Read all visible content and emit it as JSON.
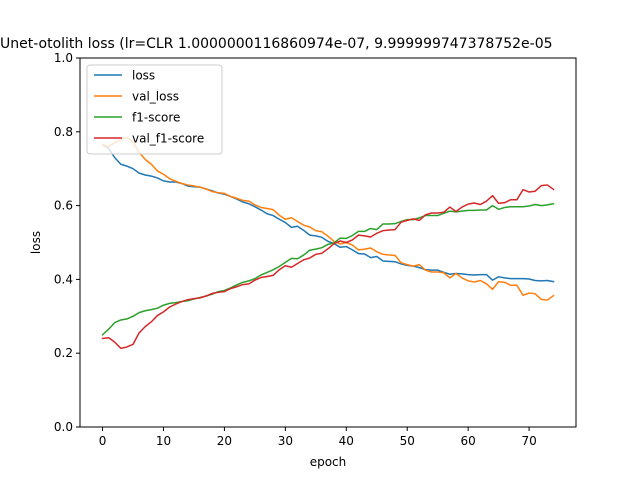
{
  "chart_data": {
    "type": "line",
    "title": "Unet-otolith loss (lr=CLR 1.0000000116860974e-07, 9.999999747378752e-05",
    "xlabel": "epoch",
    "ylabel": "loss",
    "xlim": [
      -3.7,
      77.7
    ],
    "ylim": [
      0.0,
      1.0
    ],
    "xticks": [
      0,
      10,
      20,
      30,
      40,
      50,
      60,
      70
    ],
    "yticks": [
      0.0,
      0.2,
      0.4,
      0.6,
      0.8,
      1.0
    ],
    "xtick_labels": [
      "0",
      "10",
      "20",
      "30",
      "40",
      "50",
      "60",
      "70"
    ],
    "ytick_labels": [
      "0.0",
      "0.2",
      "0.4",
      "0.6",
      "0.8",
      "1.0"
    ],
    "grid": false,
    "legend_position": "top-left",
    "series": [
      {
        "name": "loss",
        "color": "#1f77b4",
        "values": [
          0.765,
          0.755,
          0.73,
          0.712,
          0.707,
          0.7,
          0.688,
          0.683,
          0.68,
          0.675,
          0.667,
          0.664,
          0.664,
          0.66,
          0.653,
          0.651,
          0.65,
          0.645,
          0.64,
          0.634,
          0.631,
          0.625,
          0.618,
          0.61,
          0.605,
          0.597,
          0.588,
          0.578,
          0.573,
          0.563,
          0.554,
          0.541,
          0.544,
          0.533,
          0.52,
          0.518,
          0.514,
          0.503,
          0.497,
          0.487,
          0.489,
          0.48,
          0.47,
          0.469,
          0.459,
          0.462,
          0.45,
          0.449,
          0.448,
          0.442,
          0.438,
          0.436,
          0.432,
          0.426,
          0.425,
          0.425,
          0.419,
          0.414,
          0.416,
          0.415,
          0.413,
          0.412,
          0.413,
          0.413,
          0.398,
          0.407,
          0.404,
          0.402,
          0.402,
          0.402,
          0.401,
          0.397,
          0.396,
          0.397,
          0.394
        ]
      },
      {
        "name": "val_loss",
        "color": "#ff7f0e",
        "values": [
          0.765,
          0.76,
          0.77,
          0.78,
          0.785,
          0.772,
          0.745,
          0.725,
          0.712,
          0.694,
          0.685,
          0.673,
          0.666,
          0.66,
          0.656,
          0.653,
          0.65,
          0.645,
          0.638,
          0.635,
          0.633,
          0.625,
          0.62,
          0.614,
          0.612,
          0.602,
          0.595,
          0.592,
          0.589,
          0.574,
          0.563,
          0.567,
          0.557,
          0.547,
          0.542,
          0.532,
          0.529,
          0.517,
          0.503,
          0.496,
          0.5,
          0.493,
          0.48,
          0.482,
          0.485,
          0.475,
          0.468,
          0.466,
          0.465,
          0.445,
          0.44,
          0.436,
          0.44,
          0.425,
          0.42,
          0.42,
          0.418,
          0.404,
          0.416,
          0.404,
          0.396,
          0.393,
          0.397,
          0.388,
          0.373,
          0.394,
          0.392,
          0.384,
          0.384,
          0.357,
          0.363,
          0.361,
          0.346,
          0.344,
          0.356
        ]
      },
      {
        "name": "f1-score",
        "color": "#2ca02c",
        "values": [
          0.25,
          0.265,
          0.283,
          0.29,
          0.293,
          0.3,
          0.31,
          0.315,
          0.318,
          0.322,
          0.33,
          0.335,
          0.337,
          0.34,
          0.342,
          0.347,
          0.351,
          0.355,
          0.36,
          0.367,
          0.37,
          0.377,
          0.385,
          0.392,
          0.396,
          0.402,
          0.412,
          0.419,
          0.426,
          0.435,
          0.446,
          0.457,
          0.456,
          0.466,
          0.479,
          0.482,
          0.486,
          0.495,
          0.499,
          0.512,
          0.511,
          0.519,
          0.53,
          0.53,
          0.538,
          0.535,
          0.55,
          0.55,
          0.551,
          0.557,
          0.562,
          0.562,
          0.567,
          0.573,
          0.573,
          0.573,
          0.579,
          0.585,
          0.583,
          0.585,
          0.587,
          0.587,
          0.588,
          0.588,
          0.6,
          0.59,
          0.595,
          0.597,
          0.597,
          0.597,
          0.599,
          0.603,
          0.6,
          0.602,
          0.605
        ]
      },
      {
        "name": "val_f1-score",
        "color": "#d62728",
        "values": [
          0.24,
          0.242,
          0.23,
          0.213,
          0.217,
          0.224,
          0.255,
          0.272,
          0.285,
          0.302,
          0.312,
          0.325,
          0.333,
          0.34,
          0.345,
          0.348,
          0.35,
          0.355,
          0.362,
          0.365,
          0.367,
          0.375,
          0.38,
          0.386,
          0.388,
          0.398,
          0.405,
          0.408,
          0.411,
          0.426,
          0.437,
          0.433,
          0.443,
          0.453,
          0.458,
          0.468,
          0.471,
          0.483,
          0.497,
          0.504,
          0.5,
          0.507,
          0.52,
          0.518,
          0.515,
          0.525,
          0.532,
          0.534,
          0.535,
          0.555,
          0.56,
          0.564,
          0.56,
          0.575,
          0.58,
          0.58,
          0.582,
          0.596,
          0.584,
          0.596,
          0.604,
          0.607,
          0.603,
          0.612,
          0.627,
          0.606,
          0.608,
          0.616,
          0.616,
          0.643,
          0.637,
          0.639,
          0.654,
          0.656,
          0.644
        ]
      }
    ]
  }
}
